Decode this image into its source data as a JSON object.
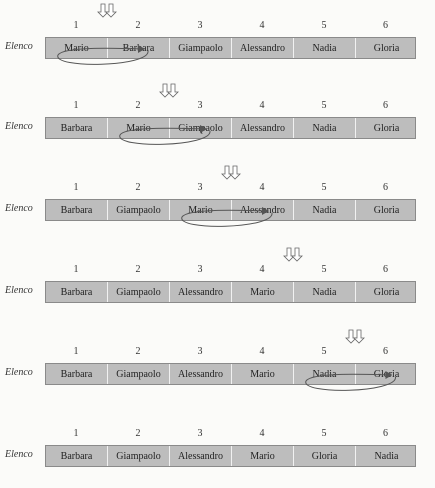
{
  "row_label": "Elenco",
  "indices": [
    "1",
    "2",
    "3",
    "4",
    "5",
    "6"
  ],
  "steps": [
    {
      "cells": [
        "Mario",
        "Barbara",
        "Giampaolo",
        "Alessandro",
        "Nadia",
        "Gloria"
      ],
      "marker_between": [
        1,
        2
      ],
      "swap": [
        1,
        2
      ]
    },
    {
      "cells": [
        "Barbara",
        "Mario",
        "Giampaolo",
        "Alessandro",
        "Nadia",
        "Gloria"
      ],
      "marker_between": [
        2,
        3
      ],
      "swap": [
        2,
        3
      ]
    },
    {
      "cells": [
        "Barbara",
        "Giampaolo",
        "Mario",
        "Alessandro",
        "Nadia",
        "Gloria"
      ],
      "marker_between": [
        3,
        4
      ],
      "swap": [
        3,
        4
      ]
    },
    {
      "cells": [
        "Barbara",
        "Giampaolo",
        "Alessandro",
        "Mario",
        "Nadia",
        "Gloria"
      ],
      "marker_between": [
        4,
        5
      ],
      "swap": null
    },
    {
      "cells": [
        "Barbara",
        "Giampaolo",
        "Alessandro",
        "Mario",
        "Nadia",
        "Gloria"
      ],
      "marker_between": [
        5,
        6
      ],
      "swap": [
        5,
        6
      ]
    },
    {
      "cells": [
        "Barbara",
        "Giampaolo",
        "Alessandro",
        "Mario",
        "Gloria",
        "Nadia"
      ],
      "marker_between": null,
      "swap": null
    }
  ],
  "colors": {
    "bar": "#bdbdbd",
    "arrow": "#555555"
  }
}
